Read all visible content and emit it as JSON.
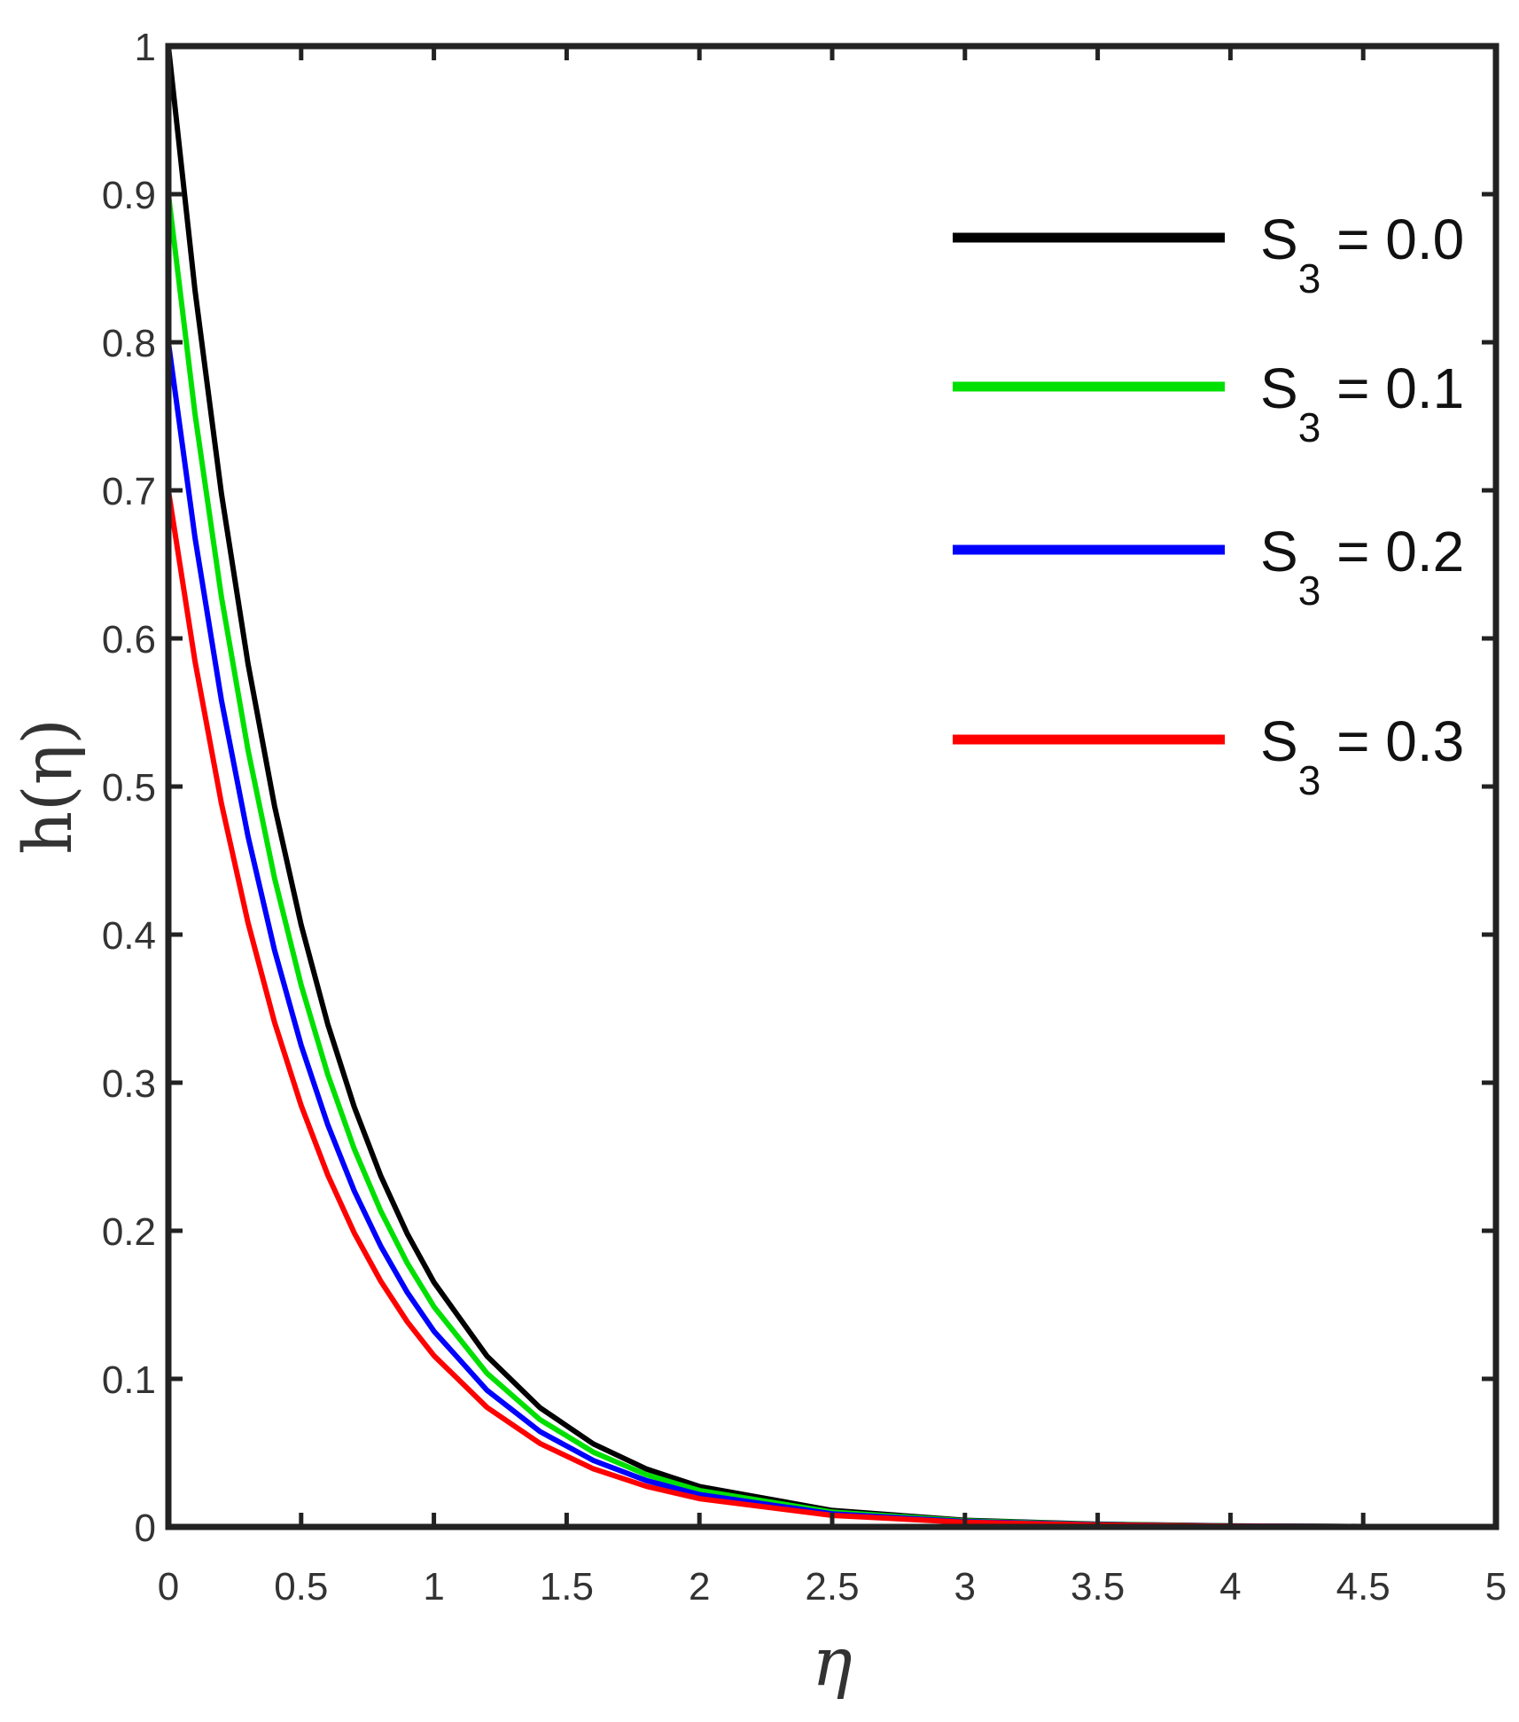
{
  "chart_data": {
    "type": "line",
    "xlabel": "η",
    "ylabel": "h(η)",
    "xlim": [
      0,
      5
    ],
    "ylim": [
      0,
      1
    ],
    "x_ticks": [
      "0",
      "0.5",
      "1",
      "1.5",
      "2",
      "2.5",
      "3",
      "3.5",
      "4",
      "4.5",
      "5"
    ],
    "y_ticks": [
      "0",
      "0.1",
      "0.2",
      "0.3",
      "0.4",
      "0.5",
      "0.6",
      "0.7",
      "0.8",
      "0.9",
      "1"
    ],
    "grid": false,
    "legend_position": "top-right",
    "decay_rate": 1.8,
    "x": [
      0,
      0.1,
      0.2,
      0.3,
      0.4,
      0.5,
      0.6,
      0.7,
      0.8,
      0.9,
      1.0,
      1.2,
      1.4,
      1.6,
      1.8,
      2.0,
      2.5,
      3.0,
      3.5,
      4.0,
      4.5,
      5.0
    ],
    "series": [
      {
        "label": "S",
        "subscript": "3",
        "value_text": " = 0.0",
        "color": "#000000",
        "h0": 1.0
      },
      {
        "label": "S",
        "subscript": "3",
        "value_text": " = 0.1",
        "color": "#00e000",
        "h0": 0.9
      },
      {
        "label": "S",
        "subscript": "3",
        "value_text": " = 0.2",
        "color": "#0000ff",
        "h0": 0.8
      },
      {
        "label": "S",
        "subscript": "3",
        "value_text": " = 0.3",
        "color": "#ff0000",
        "h0": 0.7
      }
    ]
  }
}
